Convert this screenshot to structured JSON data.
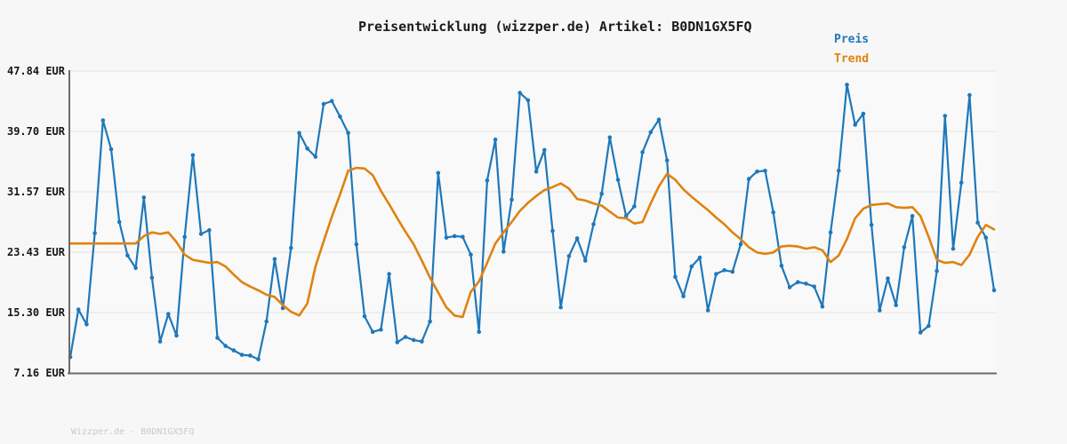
{
  "header": {
    "title": "Preisentwicklung (wizzper.de) Artikel: B0DN1GX5FQ"
  },
  "legend": [
    {
      "label": "Preis",
      "color": "#1e78bb"
    },
    {
      "label": "Trend",
      "color": "#df820f"
    }
  ],
  "footer": {
    "watermark": "Wizzper.de - B0DN1GX5FQ"
  },
  "chart_data": {
    "type": "line",
    "title": "Preisentwicklung (wizzper.de) Artikel: B0DN1GX5FQ",
    "ylabel": "EUR",
    "ylim": [
      7.16,
      47.84
    ],
    "grid": "horizontal",
    "legend_position": "top-right",
    "x_axis": {
      "labels_visible": false,
      "points": 114
    },
    "y_ticks": [
      {
        "value": 47.84,
        "label": "47.84 EUR"
      },
      {
        "value": 39.7,
        "label": "39.70 EUR"
      },
      {
        "value": 31.57,
        "label": "31.57 EUR"
      },
      {
        "value": 23.43,
        "label": "23.43 EUR"
      },
      {
        "value": 15.3,
        "label": "15.30 EUR"
      },
      {
        "value": 7.16,
        "label": "7.16 EUR"
      }
    ],
    "series": [
      {
        "name": "Preis",
        "color": "#1e78bb",
        "markers": true,
        "values": [
          9.3,
          15.7,
          13.7,
          26.0,
          41.2,
          37.3,
          27.5,
          23.0,
          21.3,
          30.8,
          20.0,
          11.4,
          15.1,
          12.2,
          25.5,
          36.5,
          25.9,
          26.4,
          11.9,
          10.8,
          10.2,
          9.6,
          9.5,
          9.0,
          14.1,
          22.5,
          15.9,
          24.0,
          39.5,
          37.4,
          36.3,
          43.4,
          43.8,
          41.7,
          39.5,
          24.5,
          14.8,
          12.7,
          13.0,
          20.5,
          11.3,
          12.0,
          11.6,
          11.4,
          14.1,
          34.1,
          25.4,
          25.6,
          25.5,
          23.1,
          12.7,
          33.1,
          38.6,
          23.5,
          30.5,
          44.9,
          43.9,
          34.3,
          37.2,
          26.3,
          16.0,
          22.9,
          25.3,
          22.3,
          27.2,
          31.3,
          38.9,
          33.2,
          28.3,
          29.6,
          36.9,
          39.6,
          41.3,
          35.8,
          20.1,
          17.5,
          21.5,
          22.7,
          15.6,
          20.5,
          21.0,
          20.8,
          24.5,
          33.3,
          34.3,
          34.4,
          28.8,
          21.6,
          18.7,
          19.4,
          19.2,
          18.8,
          16.1,
          26.1,
          34.4,
          46.0,
          40.6,
          42.1,
          27.1,
          15.6,
          19.9,
          16.3,
          24.1,
          28.3,
          12.6,
          13.5,
          20.9,
          41.8,
          23.9,
          32.8,
          44.6,
          27.4,
          25.4,
          18.3
        ]
      },
      {
        "name": "Trend",
        "color": "#df820f",
        "markers": false,
        "values": [
          24.6,
          24.6,
          24.6,
          24.6,
          24.6,
          24.6,
          24.6,
          24.6,
          24.6,
          25.6,
          26.1,
          25.9,
          26.1,
          24.8,
          23.1,
          22.4,
          22.2,
          22.0,
          22.1,
          21.5,
          20.4,
          19.4,
          18.8,
          18.3,
          17.7,
          17.4,
          16.3,
          15.4,
          14.9,
          16.5,
          21.5,
          24.9,
          28.2,
          31.2,
          34.4,
          34.8,
          34.7,
          33.8,
          31.7,
          29.9,
          28.0,
          26.2,
          24.5,
          22.3,
          20.0,
          18.0,
          16.0,
          14.9,
          14.7,
          18.1,
          19.5,
          22.0,
          24.6,
          26.1,
          27.5,
          29.0,
          30.1,
          31.0,
          31.8,
          32.2,
          32.7,
          32.0,
          30.6,
          30.4,
          30.0,
          29.7,
          28.9,
          28.1,
          28.0,
          27.3,
          27.5,
          30.0,
          32.3,
          34.0,
          33.2,
          31.9,
          30.9,
          30.0,
          29.1,
          28.1,
          27.2,
          26.1,
          25.2,
          24.1,
          23.4,
          23.2,
          23.4,
          24.2,
          24.3,
          24.2,
          23.9,
          24.1,
          23.7,
          22.1,
          23.0,
          25.2,
          28.0,
          29.3,
          29.8,
          29.9,
          30.0,
          29.5,
          29.4,
          29.5,
          28.3,
          25.5,
          22.4,
          22.0,
          22.1,
          21.7,
          23.1,
          25.5,
          27.1,
          26.5
        ]
      }
    ]
  }
}
